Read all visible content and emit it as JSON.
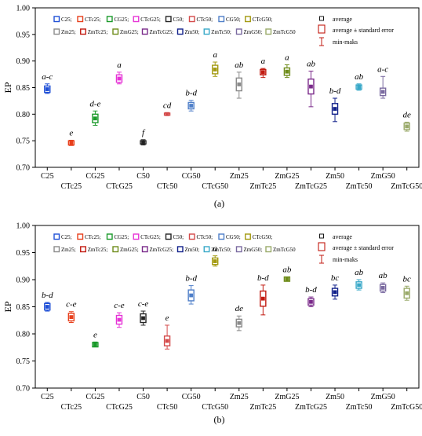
{
  "colors": {
    "C25": "#1f4fd6",
    "CTc25": "#e8401c",
    "CG25": "#1a9a2a",
    "CTcG25": "#e633d6",
    "C50": "#222222",
    "CTc50": "#d44a4a",
    "CG50": "#4f7fc9",
    "CTcG50": "#a39a10",
    "Zm25": "#8a8a8a",
    "ZmTc25": "#c21a10",
    "ZmG25": "#6e8c1a",
    "ZmTcG25": "#7a2a8a",
    "Zm50": "#10208a",
    "ZmTc50": "#38a8c8",
    "ZmG50": "#7a6aa0",
    "ZmTcG50": "#9aaa6a"
  },
  "chart_data": [
    {
      "type": "scatter",
      "panel_label": "(a)",
      "ylabel": "EP",
      "xlabel": "",
      "ylim": [
        0.7,
        1.0
      ],
      "yticks": [
        "0.70",
        "0.75",
        "0.80",
        "0.85",
        "0.90",
        "0.95",
        "1.00"
      ],
      "categories": [
        "C25",
        "CTc25",
        "CG25",
        "CTcG25",
        "C50",
        "CTc50",
        "CG50",
        "CTcG50",
        "Zm25",
        "ZmTc25",
        "ZmG25",
        "ZmTcG25",
        "Zm50",
        "ZmTc50",
        "ZmG50",
        "ZmTcG50"
      ],
      "average": [
        0.847,
        0.746,
        0.792,
        0.867,
        0.747,
        0.8,
        0.816,
        0.884,
        0.856,
        0.879,
        0.88,
        0.852,
        0.81,
        0.851,
        0.842,
        0.777
      ],
      "se": [
        0.006,
        0.004,
        0.008,
        0.007,
        0.003,
        0.002,
        0.006,
        0.008,
        0.012,
        0.005,
        0.007,
        0.014,
        0.01,
        0.004,
        0.007,
        0.006
      ],
      "min": [
        0.839,
        0.741,
        0.779,
        0.857,
        0.742,
        0.798,
        0.806,
        0.871,
        0.83,
        0.869,
        0.869,
        0.814,
        0.786,
        0.845,
        0.83,
        0.768
      ],
      "max": [
        0.857,
        0.751,
        0.806,
        0.879,
        0.752,
        0.803,
        0.826,
        0.898,
        0.879,
        0.886,
        0.893,
        0.881,
        0.83,
        0.857,
        0.871,
        0.785
      ],
      "letters": [
        "a-c",
        "e",
        "d-e",
        "a",
        "f",
        "cd",
        "b-d",
        "a",
        "ab",
        "a",
        "a",
        "ab",
        "b-d",
        "ab",
        "a-c",
        "de"
      ],
      "legend": {
        "row1": [
          "C25;",
          "CTc25;",
          "CG25;",
          "CTcG25;",
          "C50;",
          "CTc50;",
          "CG50;",
          "CTcG50;"
        ],
        "row2": [
          "Zm25;",
          "ZmTc25;",
          "ZmG25;",
          "ZmTcG25;",
          "Zm50;",
          "ZmTc50;",
          "ZmG50;",
          "ZmTcG50"
        ],
        "average": "average",
        "se": "average ± standard error",
        "minmax": "min-maks"
      }
    },
    {
      "type": "scatter",
      "panel_label": "(b)",
      "ylabel": "EP",
      "xlabel": "",
      "ylim": [
        0.7,
        1.0
      ],
      "yticks": [
        "0.70",
        "0.75",
        "0.80",
        "0.85",
        "0.90",
        "0.95",
        "1.00"
      ],
      "categories": [
        "C25",
        "CTc25",
        "CG25",
        "CTcG25",
        "C50",
        "CTc50",
        "CG50",
        "CTcG50",
        "Zm25",
        "ZmTc25",
        "ZmG25",
        "ZmTcG25",
        "Zm50",
        "ZmTc50",
        "ZmG50",
        "ZmTcG50"
      ],
      "average": [
        0.85,
        0.831,
        0.78,
        0.826,
        0.829,
        0.787,
        0.871,
        0.934,
        0.82,
        0.865,
        0.901,
        0.859,
        0.877,
        0.89,
        0.885,
        0.875
      ],
      "se": [
        0.006,
        0.007,
        0.004,
        0.008,
        0.008,
        0.009,
        0.01,
        0.006,
        0.007,
        0.014,
        0.004,
        0.006,
        0.007,
        0.006,
        0.006,
        0.009
      ],
      "min": [
        0.842,
        0.821,
        0.776,
        0.812,
        0.816,
        0.772,
        0.855,
        0.925,
        0.806,
        0.835,
        0.897,
        0.85,
        0.864,
        0.881,
        0.876,
        0.862
      ],
      "max": [
        0.858,
        0.841,
        0.785,
        0.839,
        0.842,
        0.816,
        0.889,
        0.944,
        0.833,
        0.89,
        0.905,
        0.868,
        0.89,
        0.9,
        0.894,
        0.888
      ],
      "letters": [
        "b-d",
        "c-e",
        "e",
        "c-e",
        "c-e",
        "e",
        "b-d",
        "a",
        "de",
        "b-d",
        "ab",
        "b-d",
        "bc",
        "ab",
        "ab",
        "bc"
      ],
      "legend": {
        "row1": [
          "C25;",
          "CTc25;",
          "CG25;",
          "CTcG25;",
          "C50;",
          "CTc50;",
          "CG50;",
          "CTcG50;"
        ],
        "row2": [
          "Zm25;",
          "ZmTc25;",
          "ZmG25;",
          "ZmTcG25;",
          "Zm50;",
          "ZmTc50;",
          "ZmG50;",
          "ZmTcG50"
        ],
        "average": "average",
        "se": "average ± standard error",
        "minmax": "min-maks"
      }
    }
  ]
}
